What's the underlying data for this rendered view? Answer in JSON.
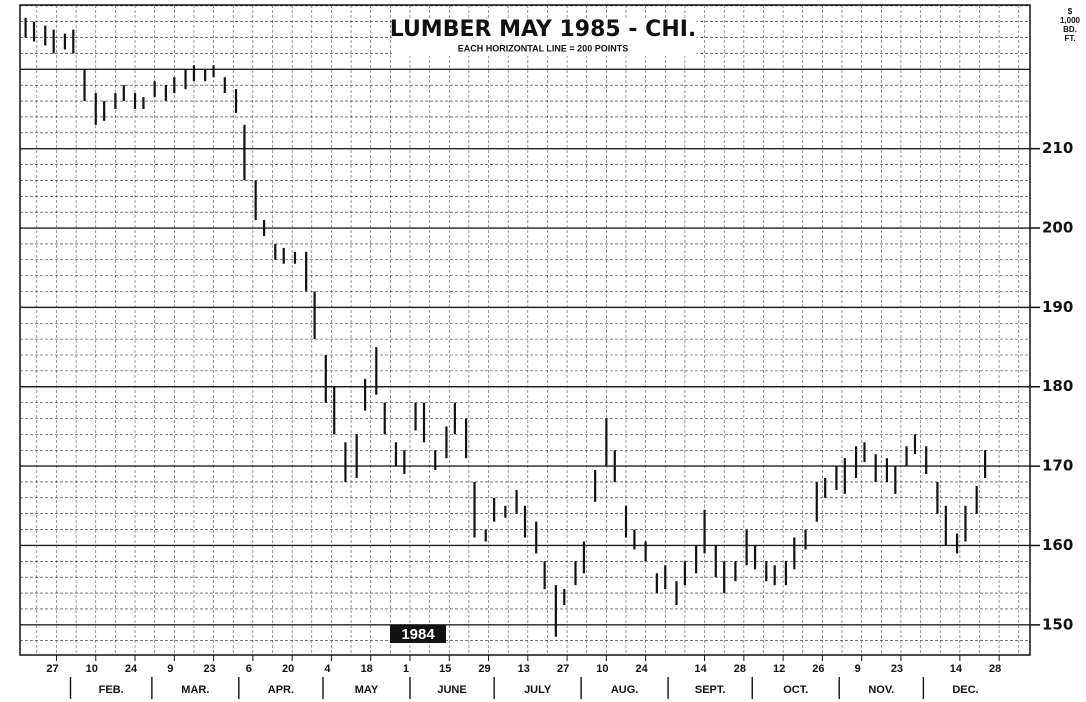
{
  "chart_data": {
    "type": "hilo",
    "title": "LUMBER MAY 1985 - CHI.",
    "subtitle": "EACH HORIZONTAL LINE = 200 POINTS",
    "y_unit": [
      "$",
      "1,000",
      "BD.",
      "FT."
    ],
    "annotation": "1984",
    "color": "#111111",
    "grid": true,
    "grid_minor_step": 2,
    "grid_major_step": 10,
    "xlim": [
      14,
      374
    ],
    "ylim": [
      146.2,
      228.1
    ],
    "yticks": [
      150,
      160,
      170,
      180,
      190,
      200,
      210
    ],
    "xticks": [
      {
        "value": 27,
        "label": "27"
      },
      {
        "value": 41,
        "label": "10"
      },
      {
        "value": 55,
        "label": "24"
      },
      {
        "value": 69,
        "label": "9"
      },
      {
        "value": 83,
        "label": "23"
      },
      {
        "value": 97,
        "label": "6"
      },
      {
        "value": 111,
        "label": "20"
      },
      {
        "value": 125,
        "label": "4"
      },
      {
        "value": 139,
        "label": "18"
      },
      {
        "value": 153,
        "label": "1"
      },
      {
        "value": 167,
        "label": "15"
      },
      {
        "value": 181,
        "label": "29"
      },
      {
        "value": 195,
        "label": "13"
      },
      {
        "value": 209,
        "label": "27"
      },
      {
        "value": 223,
        "label": "10"
      },
      {
        "value": 237,
        "label": "24"
      },
      {
        "value": 258,
        "label": "14"
      },
      {
        "value": 272,
        "label": "28"
      },
      {
        "value": 286,
        "label": "12"
      },
      {
        "value": 300,
        "label": "26"
      },
      {
        "value": 314,
        "label": "9"
      },
      {
        "value": 328,
        "label": "23"
      },
      {
        "value": 349,
        "label": "14"
      },
      {
        "value": 363,
        "label": "28"
      }
    ],
    "months": [
      {
        "value": 32,
        "label": "FEB."
      },
      {
        "value": 61,
        "label": "MAR."
      },
      {
        "value": 92,
        "label": "APR."
      },
      {
        "value": 122,
        "label": "MAY"
      },
      {
        "value": 153,
        "label": "JUNE"
      },
      {
        "value": 183,
        "label": "JULY"
      },
      {
        "value": 214,
        "label": "AUG."
      },
      {
        "value": 245,
        "label": "SEPT."
      },
      {
        "value": 275,
        "label": "OCT."
      },
      {
        "value": 306,
        "label": "NOV."
      },
      {
        "value": 336,
        "label": "DEC."
      }
    ],
    "x": [
      16,
      19,
      23,
      26,
      30,
      33,
      37,
      41,
      44,
      48,
      51,
      55,
      58,
      62,
      66,
      69,
      73,
      76,
      80,
      83,
      87,
      91,
      94,
      98,
      101,
      105,
      108,
      112,
      116,
      119,
      123,
      126,
      130,
      134,
      137,
      141,
      144,
      148,
      151,
      155,
      158,
      162,
      166,
      169,
      173,
      176,
      180,
      183,
      187,
      191,
      194,
      198,
      201,
      205,
      208,
      212,
      215,
      219,
      223,
      226,
      230,
      233,
      237,
      241,
      244,
      248,
      251,
      255,
      258,
      262,
      265,
      269,
      273,
      276,
      280,
      283,
      287,
      290,
      294,
      298,
      301,
      305,
      308,
      312,
      315,
      319,
      323,
      326,
      330,
      333,
      337,
      341,
      344,
      348,
      351,
      355,
      358
    ],
    "high": [
      226.5,
      226,
      225.5,
      225,
      224.5,
      225,
      220,
      217,
      216,
      217,
      218,
      217,
      216.5,
      218.5,
      218,
      219,
      220,
      220.5,
      220,
      220.5,
      219,
      217.5,
      213,
      206,
      201,
      198,
      197.5,
      197,
      197,
      192,
      184,
      180,
      173,
      174,
      181,
      185,
      178,
      173,
      172,
      178,
      178,
      172,
      175,
      178,
      176,
      168,
      162,
      166,
      165,
      167,
      165,
      163,
      158,
      155,
      154.5,
      158,
      160.5,
      169.5,
      176,
      172,
      165,
      162,
      160.5,
      156.5,
      157.5,
      155.5,
      158,
      160,
      164.5,
      160,
      158,
      158,
      162,
      160,
      158,
      157.5,
      158,
      161,
      162,
      168,
      168.5,
      170,
      171,
      172.5,
      173,
      171.5,
      171,
      170,
      172.5,
      174,
      172.5,
      168,
      165,
      161.5,
      165,
      167.5,
      172
    ],
    "low": [
      224,
      223.5,
      223,
      222,
      222.5,
      222,
      216,
      213,
      213.5,
      215,
      216,
      215,
      215,
      216.5,
      216,
      217,
      217.5,
      218.5,
      218.5,
      219,
      217,
      214.5,
      206,
      201,
      199,
      196,
      195.5,
      195.5,
      192,
      186,
      178,
      174,
      168,
      168.5,
      177,
      179,
      174,
      170,
      169,
      174.5,
      173,
      169.5,
      171,
      174,
      171,
      161,
      160.5,
      163,
      163.5,
      164,
      161,
      159,
      154.5,
      148.5,
      152.5,
      155,
      156.5,
      165.5,
      170,
      168,
      161,
      159.5,
      158,
      154,
      154.5,
      152.5,
      155,
      156.5,
      159,
      156,
      154,
      155.5,
      157.5,
      157,
      155.5,
      155,
      155,
      157,
      159.5,
      163,
      166,
      167,
      166.5,
      168.5,
      170.5,
      168,
      168,
      166.5,
      170,
      171.5,
      169,
      164,
      160,
      159,
      160.5,
      164,
      168.5
    ]
  }
}
